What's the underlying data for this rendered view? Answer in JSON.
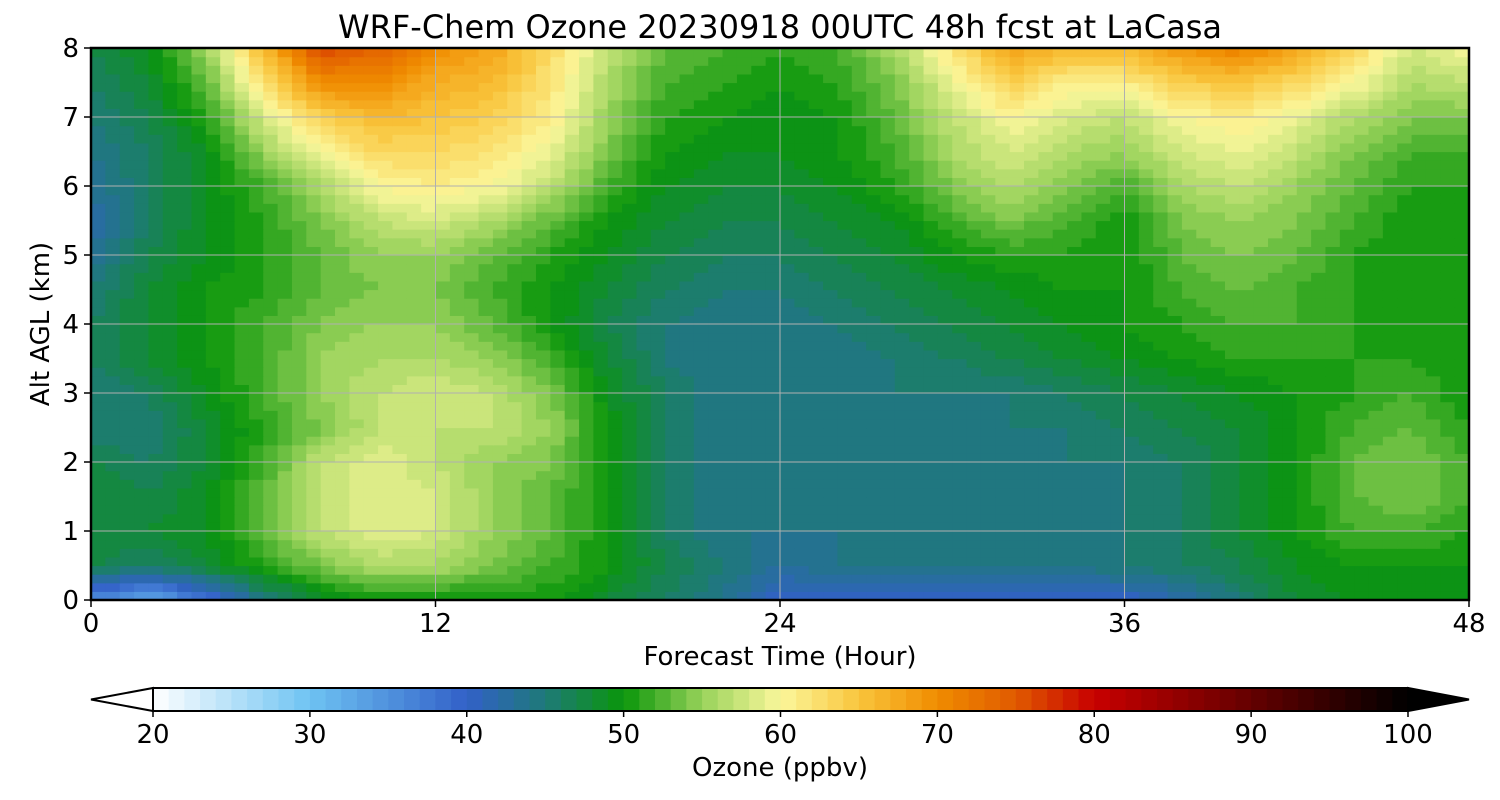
{
  "chart_data": {
    "type": "heatmap",
    "title": "WRF-Chem Ozone  20230918 00UTC 48h fcst at LaCasa",
    "xlabel": "Forecast Time (Hour)",
    "ylabel": "Alt AGL (km)",
    "x_unit": "hour",
    "y_unit": "km",
    "xlim": [
      0,
      48
    ],
    "ylim": [
      0,
      8
    ],
    "xticks": [
      0,
      12,
      24,
      36,
      48
    ],
    "yticks": [
      0,
      1,
      2,
      3,
      4,
      5,
      6,
      7,
      8
    ],
    "grid": true,
    "x": [
      0,
      2,
      4,
      6,
      8,
      10,
      12,
      14,
      16,
      18,
      20,
      22,
      24,
      26,
      28,
      30,
      32,
      34,
      36,
      38,
      40,
      42,
      44,
      46,
      48
    ],
    "y": [
      0,
      0.5,
      1,
      1.5,
      2,
      2.5,
      3,
      3.5,
      4,
      4.5,
      5,
      5.5,
      6,
      6.5,
      7,
      7.5,
      8
    ],
    "z": [
      [
        36,
        32,
        38,
        44,
        48,
        50,
        50,
        50,
        50,
        48,
        46,
        44,
        40,
        40,
        40,
        40,
        40,
        40,
        40,
        42,
        45,
        48,
        49,
        49,
        49
      ],
      [
        47,
        46,
        48,
        51,
        54,
        56,
        56,
        54,
        52,
        50,
        47,
        45,
        43,
        44,
        44,
        44,
        44,
        44,
        45,
        46,
        47,
        49,
        50,
        50,
        50
      ],
      [
        48,
        48,
        49,
        53,
        57,
        59,
        58,
        55,
        53,
        50,
        46,
        44,
        44,
        44,
        44,
        44,
        44,
        44,
        45,
        46,
        48,
        50,
        52,
        52,
        51
      ],
      [
        48,
        47,
        49,
        53,
        57,
        59,
        58,
        55,
        53,
        50,
        46,
        44,
        44,
        44,
        44,
        44,
        44,
        44,
        45,
        46,
        48,
        50,
        53,
        54,
        52
      ],
      [
        47,
        46,
        48,
        52,
        57,
        59,
        57,
        55,
        54,
        50,
        46,
        44,
        44,
        44,
        44,
        44,
        44,
        45,
        45,
        46,
        48,
        50,
        53,
        54,
        52
      ],
      [
        45,
        45,
        48,
        51,
        54,
        57,
        57,
        57,
        55,
        50,
        46,
        44,
        44,
        44,
        44,
        44,
        45,
        45,
        46,
        47,
        48,
        50,
        52,
        53,
        51
      ],
      [
        45,
        46,
        49,
        52,
        55,
        57,
        58,
        57,
        54,
        49,
        46,
        44,
        44,
        44,
        45,
        45,
        45,
        46,
        47,
        48,
        49,
        50,
        51,
        52,
        50
      ],
      [
        46,
        48,
        50,
        52,
        55,
        56,
        56,
        55,
        52,
        48,
        45,
        44,
        44,
        44,
        45,
        46,
        47,
        48,
        49,
        50,
        51,
        51,
        51,
        51,
        50
      ],
      [
        46,
        48,
        50,
        52,
        54,
        55,
        55,
        53,
        50,
        47,
        45,
        44,
        44,
        45,
        46,
        47,
        48,
        49,
        50,
        51,
        52,
        52,
        51,
        50,
        50
      ],
      [
        45,
        48,
        50,
        51,
        53,
        54,
        54,
        52,
        50,
        48,
        46,
        45,
        45,
        46,
        47,
        48,
        49,
        50,
        50,
        52,
        53,
        52,
        51,
        50,
        50
      ],
      [
        43,
        47,
        49,
        51,
        53,
        55,
        55,
        53,
        51,
        49,
        47,
        46,
        46,
        47,
        48,
        50,
        51,
        51,
        50,
        53,
        54,
        53,
        51,
        50,
        50
      ],
      [
        42,
        46,
        49,
        51,
        54,
        57,
        58,
        56,
        53,
        50,
        48,
        47,
        47,
        48,
        49,
        52,
        54,
        52,
        50,
        54,
        55,
        54,
        52,
        50,
        50
      ],
      [
        43,
        46,
        49,
        52,
        56,
        60,
        61,
        60,
        57,
        52,
        49,
        48,
        48,
        49,
        51,
        54,
        56,
        54,
        52,
        56,
        57,
        55,
        53,
        51,
        51
      ],
      [
        44,
        46,
        49,
        55,
        60,
        63,
        63,
        62,
        59,
        54,
        50,
        49,
        49,
        50,
        52,
        56,
        58,
        56,
        55,
        58,
        59,
        57,
        54,
        52,
        52
      ],
      [
        45,
        47,
        51,
        58,
        64,
        66,
        65,
        64,
        61,
        55,
        51,
        50,
        49,
        50,
        53,
        57,
        60,
        58,
        57,
        60,
        61,
        59,
        56,
        54,
        54
      ],
      [
        46,
        48,
        53,
        62,
        70,
        70,
        67,
        66,
        62,
        56,
        52,
        51,
        50,
        51,
        54,
        59,
        64,
        61,
        61,
        64,
        65,
        63,
        60,
        56,
        57
      ],
      [
        47,
        49,
        55,
        66,
        76,
        74,
        70,
        68,
        63,
        57,
        53,
        52,
        51,
        52,
        56,
        62,
        68,
        66,
        66,
        69,
        71,
        68,
        63,
        58,
        60
      ]
    ],
    "colorbar": {
      "label": "Ozone  (ppbv)",
      "min": 20,
      "max": 100,
      "extend": "both",
      "ticks": [
        20,
        30,
        40,
        50,
        60,
        70,
        80,
        90,
        100
      ],
      "colors": [
        {
          "v": 20,
          "c": "#ffffff"
        },
        {
          "v": 30,
          "c": "#6ec3f2"
        },
        {
          "v": 40,
          "c": "#3260c8"
        },
        {
          "v": 45,
          "c": "#1e7a78"
        },
        {
          "v": 50,
          "c": "#0a960a"
        },
        {
          "v": 55,
          "c": "#98d25a"
        },
        {
          "v": 60,
          "c": "#fbf79c"
        },
        {
          "v": 65,
          "c": "#f9c53c"
        },
        {
          "v": 70,
          "c": "#f08c00"
        },
        {
          "v": 75,
          "c": "#e05a00"
        },
        {
          "v": 80,
          "c": "#c80000"
        },
        {
          "v": 90,
          "c": "#640000"
        },
        {
          "v": 100,
          "c": "#000000"
        }
      ]
    }
  }
}
